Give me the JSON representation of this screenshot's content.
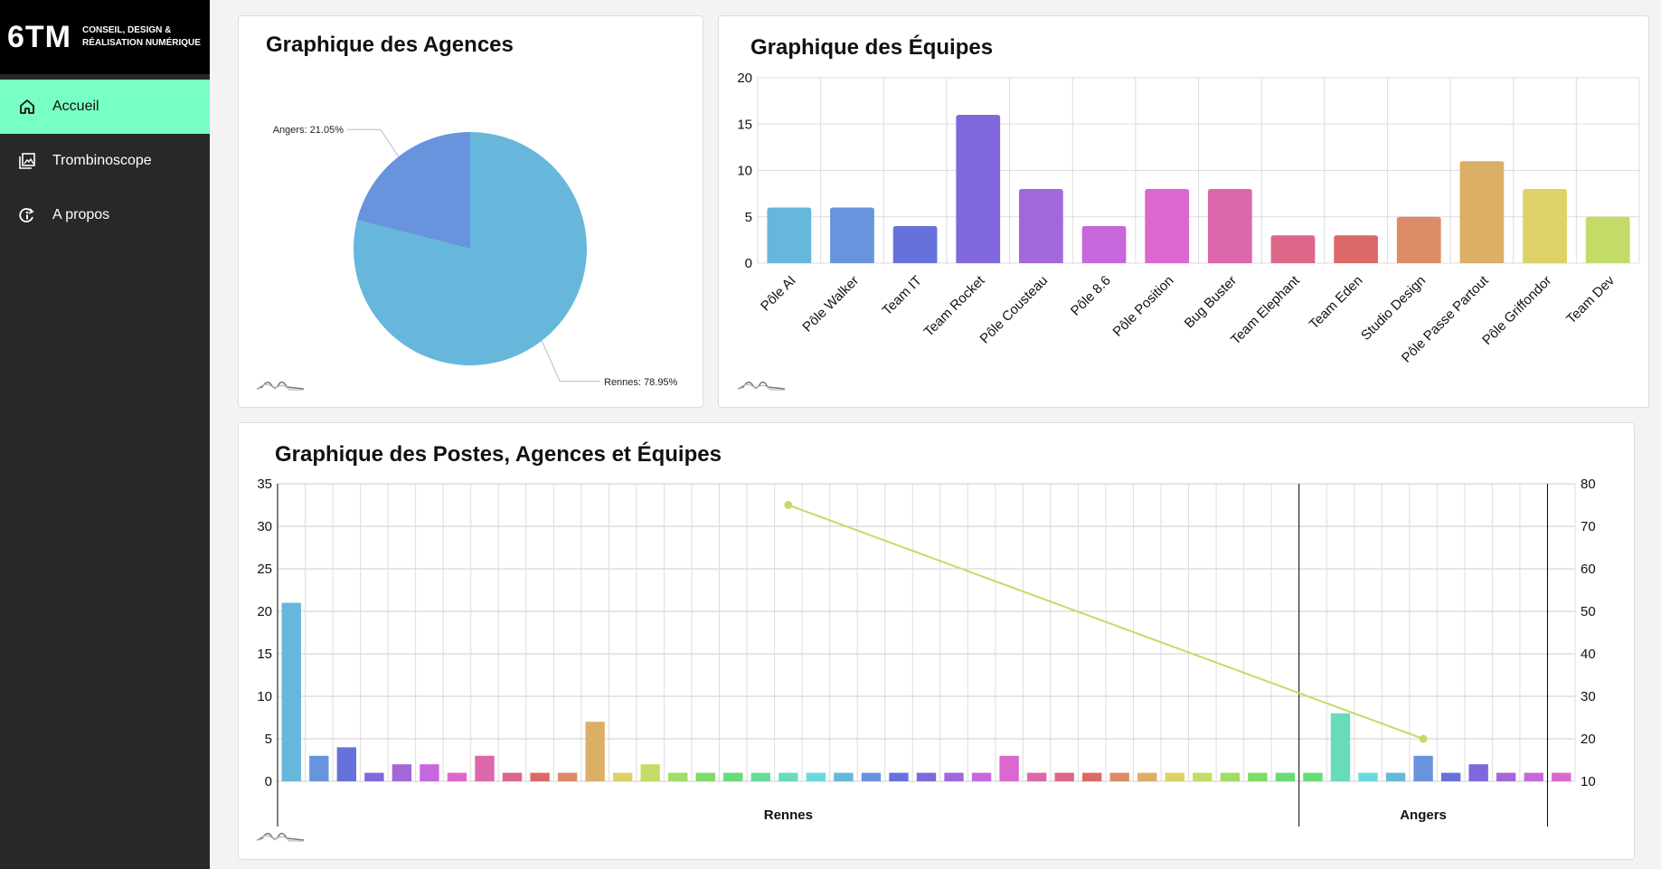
{
  "brand": {
    "mark": "6TM",
    "tagline_line1": "CONSEIL, DESIGN &",
    "tagline_line2": "RÉALISATION NUMÉRIQUE"
  },
  "nav": {
    "items": [
      {
        "label": "Accueil",
        "icon": "home-icon",
        "active": true
      },
      {
        "label": "Trombinoscope",
        "icon": "image-gallery-icon",
        "active": false
      },
      {
        "label": "A propos",
        "icon": "info-cycle-icon",
        "active": false
      }
    ]
  },
  "colors": {
    "accent": "#78ffc3",
    "sidebar": "#282828"
  },
  "cards": {
    "agences_title": "Graphique des Agences",
    "equipes_title": "Graphique des Équipes",
    "postes_title": "Graphique des Postes, Agences et Équipes"
  },
  "chart_data": [
    {
      "type": "pie",
      "title": "Graphique des Agences",
      "slices": [
        {
          "label": "Rennes: 78.95%",
          "value": 78.95,
          "color": "#67b7dc"
        },
        {
          "label": "Angers: 21.05%",
          "value": 21.05,
          "color": "#6794dc"
        }
      ]
    },
    {
      "type": "bar",
      "title": "Graphique des Équipes",
      "categories": [
        "Pôle AI",
        "Pôle Walker",
        "Team IT",
        "Team Rocket",
        "Pôle Cousteau",
        "Pôle 8.6",
        "Pôle Position",
        "Bug Buster",
        "Team Elephant",
        "Team Eden",
        "Studio Design",
        "Pôle Passe Partout",
        "Pôle Griffondor",
        "Team Dev"
      ],
      "values": [
        6,
        6,
        4,
        16,
        8,
        4,
        8,
        8,
        3,
        3,
        5,
        11,
        8,
        5
      ],
      "colors": [
        "#67b7dc",
        "#6794dc",
        "#6771dc",
        "#8067dc",
        "#a367dc",
        "#c767dc",
        "#dc67ce",
        "#dc67ab",
        "#dc6788",
        "#dc6967",
        "#dc8c67",
        "#dcaf67",
        "#dcd267",
        "#c3dc67"
      ],
      "ylim": [
        0,
        20
      ],
      "yticks": [
        "0",
        "5",
        "10",
        "15",
        "20"
      ]
    },
    {
      "type": "bar",
      "title": "Graphique des Postes, Agences et Équipes",
      "groups": [
        {
          "label": "Rennes",
          "count": 37
        },
        {
          "label": "Angers",
          "count": 9
        }
      ],
      "values": [
        21,
        3,
        4,
        1,
        2,
        2,
        1,
        3,
        1,
        1,
        1,
        7,
        1,
        2,
        1,
        1,
        1,
        1,
        1,
        1,
        1,
        1,
        1,
        1,
        1,
        1,
        3,
        1,
        1,
        1,
        1,
        1,
        1,
        1,
        1,
        1,
        1,
        1,
        8,
        1,
        1,
        3,
        1,
        2,
        1,
        1,
        1
      ],
      "colors": [
        "#67b7dc",
        "#6794dc",
        "#6771dc",
        "#8067dc",
        "#a367dc",
        "#c767dc",
        "#dc67ce",
        "#dc67ab",
        "#dc6788",
        "#dc6967",
        "#dc8c67",
        "#dcaf67",
        "#dcd267",
        "#c3dc67",
        "#a0dc67",
        "#7ddc67",
        "#67dc75",
        "#67dc98",
        "#67dcbb",
        "#67dadc",
        "#67b7dc",
        "#6794dc",
        "#6771dc",
        "#8067dc",
        "#a367dc",
        "#c767dc",
        "#dc67ce",
        "#dc67ab",
        "#dc6788",
        "#dc6967",
        "#dc8c67",
        "#dcaf67",
        "#dcd267",
        "#c3dc67",
        "#a0dc67",
        "#7ddc67",
        "#67dc75",
        "#67dc75",
        "#67dcbb",
        "#67dadc",
        "#67b7dc",
        "#6794dc",
        "#6771dc",
        "#8067dc",
        "#a367dc",
        "#c767dc",
        "#dc67ce"
      ],
      "ylim": [
        0,
        35
      ],
      "yticks": [
        "0",
        "5",
        "10",
        "15",
        "20",
        "25",
        "30",
        "35"
      ],
      "y2lim": [
        10,
        80
      ],
      "y2ticks": [
        "10",
        "20",
        "30",
        "40",
        "50",
        "60",
        "70",
        "80"
      ],
      "line": {
        "points": [
          {
            "group": "Rennes",
            "value": 75
          },
          {
            "group": "Angers",
            "value": 20
          }
        ],
        "color": "#c3dc67"
      }
    }
  ]
}
